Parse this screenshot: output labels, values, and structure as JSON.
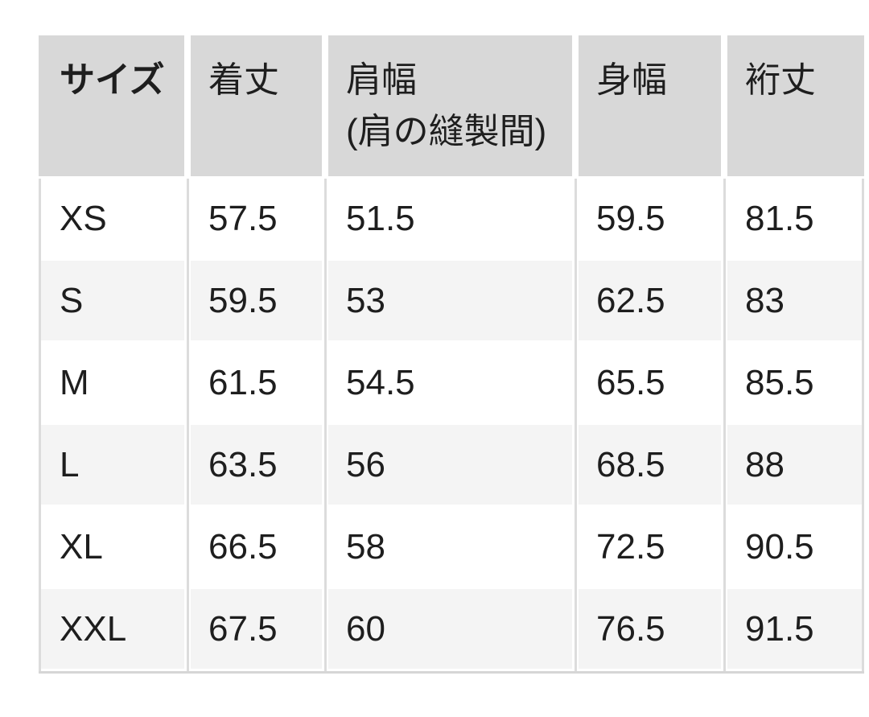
{
  "chart_data": {
    "type": "table",
    "columns": [
      "サイズ",
      "着丈",
      "肩幅",
      "身幅",
      "裄丈"
    ],
    "column_sublabels": [
      "",
      "",
      "(肩の縫製間)",
      "",
      ""
    ],
    "rows": [
      {
        "cells": [
          "XS",
          "57.5",
          "51.5",
          "59.5",
          "81.5"
        ]
      },
      {
        "cells": [
          "S",
          "59.5",
          "53",
          "62.5",
          "83"
        ]
      },
      {
        "cells": [
          "M",
          "61.5",
          "54.5",
          "65.5",
          "85.5"
        ]
      },
      {
        "cells": [
          "L",
          "63.5",
          "56",
          "68.5",
          "88"
        ]
      },
      {
        "cells": [
          "XL",
          "66.5",
          "58",
          "72.5",
          "90.5"
        ]
      },
      {
        "cells": [
          "XXL",
          "67.5",
          "60",
          "76.5",
          "91.5"
        ]
      }
    ],
    "layout_hints": {
      "header_row": true,
      "alternating_rows": true,
      "grid": "column dividers in body, no row lines"
    }
  },
  "colors": {
    "header_bg": "#d8d8d8",
    "row_bg": "#ffffff",
    "row_alt_bg": "#f4f4f4",
    "divider": "#dcdcdc",
    "border_bottom": "#d6d6d6",
    "text": "#1e1e1e",
    "page_bg": "#ffffff"
  }
}
